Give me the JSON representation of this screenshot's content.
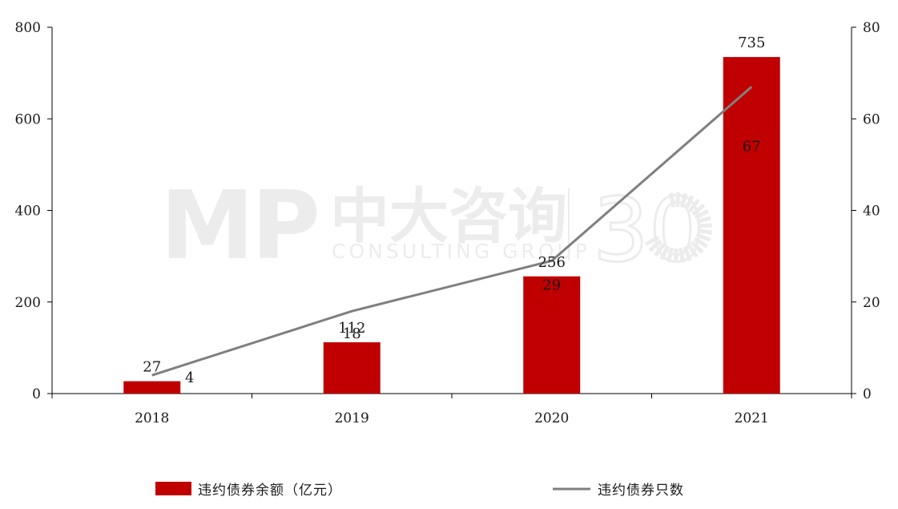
{
  "chart_data": {
    "type": "bar",
    "categories": [
      "2018",
      "2019",
      "2020",
      "2021"
    ],
    "series": [
      {
        "name": "违约债券余额（亿元）",
        "type": "bar",
        "axis": "left",
        "values": [
          27,
          112,
          256,
          735
        ],
        "labels": [
          "27",
          "112",
          "256",
          "735"
        ],
        "color": "#c00000"
      },
      {
        "name": "违约债券只数",
        "type": "line",
        "axis": "right",
        "values": [
          4,
          18,
          29,
          67
        ],
        "labels": [
          "4",
          "18",
          "29",
          "67"
        ],
        "color": "#7f7f7f"
      }
    ],
    "y_left": {
      "min": 0,
      "max": 800,
      "ticks": [
        "0",
        "200",
        "400",
        "600",
        "800"
      ]
    },
    "y_right": {
      "min": 0,
      "max": 80,
      "ticks": [
        "0",
        "20",
        "40",
        "60",
        "80"
      ]
    },
    "legend_position": "bottom",
    "grid": false
  },
  "watermark": {
    "logo": "MP",
    "name": "中大咨询",
    "subtitle": "CONSULTING GROUP",
    "number": "30"
  }
}
